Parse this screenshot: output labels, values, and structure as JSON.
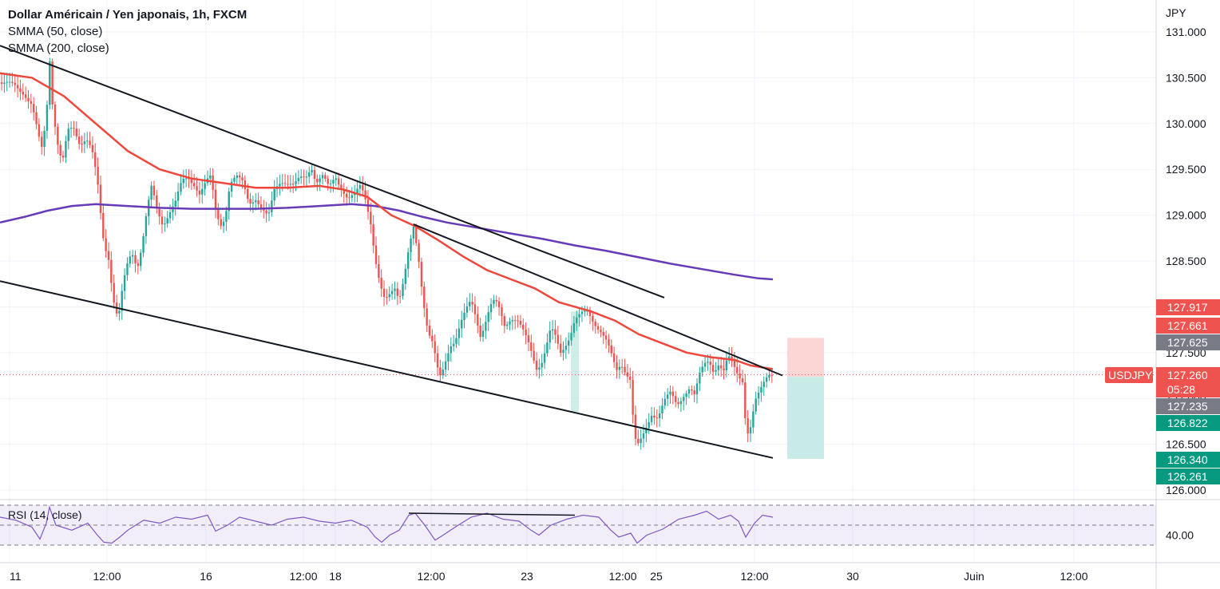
{
  "legend": {
    "title": "Dollar Américain / Yen japonais, 1h, FXCM",
    "ind1": "SMMA (50, close)",
    "ind2": "SMMA (200, close)"
  },
  "rsi_label": "RSI (14, close)",
  "currency": "JPY",
  "colors": {
    "up": "#26a69a",
    "down": "#ef5350",
    "smma50": "#f0473c",
    "smma200": "#673ab7",
    "rsi": "#7e57c2",
    "trend": "#131722",
    "stop_zone": "#fcd6d5",
    "target_zone": "#c8ebe7",
    "grid": "#f0f3fa"
  },
  "chart_data": {
    "type": "candlestick",
    "symbol": "USDJPY",
    "timeframe": "1h",
    "ylim": [
      125.9,
      131.2
    ],
    "price_ticks": [
      "131.000",
      "130.500",
      "130.000",
      "129.500",
      "129.000",
      "128.500",
      "128.000",
      "127.500",
      "127.000",
      "126.500",
      "126.000"
    ],
    "x_ticks": [
      "11",
      "12:00",
      "16",
      "12:00",
      "18",
      "12:00",
      "23",
      "12:00",
      "25",
      "12:00",
      "30",
      "Juin",
      "12:00"
    ],
    "price_tags": [
      {
        "label": "127.917",
        "color": "#ef5350"
      },
      {
        "label": "127.661",
        "color": "#ef5350"
      },
      {
        "label": "127.625",
        "color": "#787b86"
      },
      {
        "label": "127.260",
        "sub": "05:28",
        "symbol": "USDJPY",
        "color": "#ef5350"
      },
      {
        "label": "127.235",
        "color": "#787b86"
      },
      {
        "label": "126.822",
        "color": "#089981"
      },
      {
        "label": "126.340",
        "color": "#089981"
      },
      {
        "label": "126.261",
        "color": "#089981"
      }
    ],
    "last_price": 127.26,
    "position": {
      "entry": 127.235,
      "stop": 127.661,
      "target": 126.34
    },
    "rsi_levels": [
      70,
      50,
      30
    ],
    "rsi_tick": "40.00",
    "close_path": [
      [
        0,
        130.45
      ],
      [
        10,
        130.42
      ],
      [
        20,
        130.4
      ],
      [
        30,
        130.35
      ],
      [
        40,
        130.2
      ],
      [
        48,
        129.85
      ],
      [
        52,
        129.7
      ],
      [
        58,
        130.05
      ],
      [
        62,
        130.75
      ],
      [
        66,
        130.2
      ],
      [
        72,
        129.8
      ],
      [
        78,
        129.55
      ],
      [
        85,
        129.9
      ],
      [
        92,
        129.95
      ],
      [
        100,
        129.8
      ],
      [
        108,
        129.85
      ],
      [
        115,
        129.7
      ],
      [
        122,
        129.35
      ],
      [
        126,
        129.0
      ],
      [
        130,
        128.7
      ],
      [
        136,
        128.55
      ],
      [
        142,
        128.1
      ],
      [
        148,
        127.85
      ],
      [
        152,
        128.1
      ],
      [
        158,
        128.4
      ],
      [
        165,
        128.6
      ],
      [
        172,
        128.45
      ],
      [
        178,
        128.7
      ],
      [
        184,
        129.05
      ],
      [
        190,
        129.3
      ],
      [
        196,
        129.05
      ],
      [
        204,
        128.9
      ],
      [
        212,
        129.05
      ],
      [
        220,
        129.15
      ],
      [
        228,
        129.35
      ],
      [
        236,
        129.4
      ],
      [
        244,
        129.35
      ],
      [
        250,
        129.25
      ],
      [
        258,
        129.35
      ],
      [
        264,
        129.4
      ],
      [
        270,
        129.05
      ],
      [
        276,
        128.9
      ],
      [
        282,
        129.0
      ],
      [
        288,
        129.35
      ],
      [
        296,
        129.4
      ],
      [
        304,
        129.35
      ],
      [
        312,
        129.15
      ],
      [
        320,
        129.2
      ],
      [
        328,
        129.05
      ],
      [
        336,
        128.95
      ],
      [
        344,
        129.3
      ],
      [
        352,
        129.4
      ],
      [
        360,
        129.35
      ],
      [
        368,
        129.3
      ],
      [
        376,
        129.4
      ],
      [
        384,
        129.45
      ],
      [
        390,
        129.55
      ],
      [
        396,
        129.35
      ],
      [
        404,
        129.4
      ],
      [
        412,
        129.3
      ],
      [
        420,
        129.45
      ],
      [
        428,
        129.3
      ],
      [
        436,
        129.15
      ],
      [
        444,
        129.2
      ],
      [
        452,
        129.35
      ],
      [
        458,
        129.2
      ],
      [
        464,
        128.95
      ],
      [
        470,
        128.5
      ],
      [
        476,
        128.2
      ],
      [
        482,
        128.05
      ],
      [
        488,
        128.15
      ],
      [
        494,
        128.25
      ],
      [
        500,
        128.1
      ],
      [
        506,
        128.3
      ],
      [
        512,
        128.6
      ],
      [
        518,
        128.85
      ],
      [
        524,
        128.55
      ],
      [
        530,
        128.1
      ],
      [
        536,
        127.75
      ],
      [
        542,
        127.6
      ],
      [
        548,
        127.3
      ],
      [
        552,
        127.2
      ],
      [
        558,
        127.4
      ],
      [
        564,
        127.6
      ],
      [
        570,
        127.65
      ],
      [
        576,
        127.8
      ],
      [
        584,
        127.95
      ],
      [
        590,
        128.05
      ],
      [
        596,
        127.9
      ],
      [
        602,
        127.7
      ],
      [
        608,
        127.85
      ],
      [
        614,
        128.0
      ],
      [
        620,
        128.05
      ],
      [
        626,
        127.95
      ],
      [
        632,
        127.8
      ],
      [
        640,
        127.9
      ],
      [
        648,
        127.85
      ],
      [
        656,
        127.7
      ],
      [
        664,
        127.55
      ],
      [
        672,
        127.35
      ],
      [
        678,
        127.4
      ],
      [
        684,
        127.55
      ],
      [
        690,
        127.75
      ],
      [
        696,
        127.65
      ],
      [
        702,
        127.5
      ],
      [
        708,
        127.6
      ],
      [
        714,
        127.7
      ],
      [
        720,
        127.85
      ],
      [
        728,
        127.9
      ],
      [
        736,
        127.95
      ],
      [
        744,
        127.85
      ],
      [
        752,
        127.75
      ],
      [
        760,
        127.6
      ],
      [
        766,
        127.45
      ],
      [
        772,
        127.3
      ],
      [
        778,
        127.4
      ],
      [
        784,
        127.3
      ],
      [
        790,
        127.2
      ],
      [
        794,
        126.6
      ],
      [
        798,
        126.45
      ],
      [
        804,
        126.55
      ],
      [
        810,
        126.7
      ],
      [
        816,
        126.85
      ],
      [
        824,
        126.8
      ],
      [
        832,
        126.95
      ],
      [
        840,
        127.05
      ],
      [
        848,
        126.95
      ],
      [
        856,
        127.05
      ],
      [
        864,
        127.1
      ],
      [
        870,
        127.0
      ],
      [
        876,
        127.25
      ],
      [
        882,
        127.4
      ],
      [
        888,
        127.45
      ],
      [
        894,
        127.3
      ],
      [
        900,
        127.35
      ],
      [
        906,
        127.25
      ],
      [
        912,
        127.45
      ],
      [
        918,
        127.4
      ],
      [
        924,
        127.3
      ],
      [
        930,
        127.2
      ],
      [
        934,
        126.7
      ],
      [
        938,
        126.55
      ],
      [
        942,
        126.75
      ],
      [
        946,
        126.95
      ],
      [
        950,
        127.05
      ],
      [
        956,
        127.2
      ],
      [
        962,
        127.3
      ],
      [
        968,
        127.26
      ]
    ],
    "smma50": [
      [
        0,
        130.55
      ],
      [
        40,
        130.5
      ],
      [
        80,
        130.3
      ],
      [
        120,
        130.0
      ],
      [
        160,
        129.7
      ],
      [
        200,
        129.5
      ],
      [
        240,
        129.4
      ],
      [
        280,
        129.35
      ],
      [
        320,
        129.3
      ],
      [
        360,
        129.3
      ],
      [
        400,
        129.32
      ],
      [
        430,
        129.28
      ],
      [
        460,
        129.2
      ],
      [
        490,
        129.0
      ],
      [
        520,
        128.88
      ],
      [
        550,
        128.72
      ],
      [
        580,
        128.55
      ],
      [
        610,
        128.4
      ],
      [
        640,
        128.3
      ],
      [
        670,
        128.2
      ],
      [
        700,
        128.05
      ],
      [
        740,
        127.95
      ],
      [
        770,
        127.85
      ],
      [
        800,
        127.7
      ],
      [
        830,
        127.6
      ],
      [
        860,
        127.5
      ],
      [
        890,
        127.45
      ],
      [
        920,
        127.42
      ],
      [
        940,
        127.36
      ],
      [
        968,
        127.32
      ]
    ],
    "smma200": [
      [
        0,
        128.92
      ],
      [
        30,
        128.98
      ],
      [
        60,
        129.05
      ],
      [
        90,
        129.1
      ],
      [
        120,
        129.12
      ],
      [
        160,
        129.1
      ],
      [
        200,
        129.08
      ],
      [
        240,
        129.07
      ],
      [
        280,
        129.07
      ],
      [
        320,
        129.07
      ],
      [
        360,
        129.08
      ],
      [
        400,
        129.1
      ],
      [
        440,
        129.12
      ],
      [
        470,
        129.1
      ],
      [
        500,
        129.05
      ],
      [
        530,
        128.98
      ],
      [
        560,
        128.92
      ],
      [
        600,
        128.86
      ],
      [
        640,
        128.8
      ],
      [
        680,
        128.74
      ],
      [
        720,
        128.67
      ],
      [
        760,
        128.61
      ],
      [
        800,
        128.54
      ],
      [
        840,
        128.47
      ],
      [
        880,
        128.41
      ],
      [
        920,
        128.35
      ],
      [
        950,
        128.31
      ],
      [
        968,
        128.3
      ]
    ],
    "rsi_path": [
      [
        0,
        58
      ],
      [
        20,
        55
      ],
      [
        40,
        48
      ],
      [
        50,
        36
      ],
      [
        58,
        52
      ],
      [
        62,
        68
      ],
      [
        70,
        50
      ],
      [
        90,
        45
      ],
      [
        110,
        52
      ],
      [
        122,
        40
      ],
      [
        130,
        33
      ],
      [
        140,
        32
      ],
      [
        150,
        38
      ],
      [
        160,
        45
      ],
      [
        180,
        55
      ],
      [
        200,
        52
      ],
      [
        220,
        58
      ],
      [
        240,
        56
      ],
      [
        260,
        60
      ],
      [
        270,
        44
      ],
      [
        285,
        50
      ],
      [
        300,
        58
      ],
      [
        320,
        54
      ],
      [
        340,
        50
      ],
      [
        360,
        56
      ],
      [
        380,
        58
      ],
      [
        400,
        54
      ],
      [
        420,
        52
      ],
      [
        440,
        55
      ],
      [
        460,
        48
      ],
      [
        470,
        38
      ],
      [
        478,
        33
      ],
      [
        488,
        40
      ],
      [
        500,
        45
      ],
      [
        512,
        60
      ],
      [
        520,
        62
      ],
      [
        532,
        50
      ],
      [
        545,
        35
      ],
      [
        555,
        40
      ],
      [
        570,
        48
      ],
      [
        590,
        58
      ],
      [
        610,
        62
      ],
      [
        630,
        56
      ],
      [
        650,
        54
      ],
      [
        665,
        45
      ],
      [
        675,
        40
      ],
      [
        690,
        50
      ],
      [
        710,
        56
      ],
      [
        730,
        60
      ],
      [
        750,
        58
      ],
      [
        765,
        45
      ],
      [
        775,
        38
      ],
      [
        790,
        42
      ],
      [
        798,
        32
      ],
      [
        810,
        40
      ],
      [
        830,
        46
      ],
      [
        850,
        56
      ],
      [
        870,
        60
      ],
      [
        885,
        64
      ],
      [
        900,
        56
      ],
      [
        915,
        60
      ],
      [
        925,
        54
      ],
      [
        934,
        38
      ],
      [
        945,
        52
      ],
      [
        955,
        60
      ],
      [
        968,
        58
      ]
    ],
    "trend_lines": [
      {
        "x1": 0,
        "y1": 130.85,
        "x2": 832,
        "y2": 128.1
      },
      {
        "x1": 0,
        "y1": 128.28,
        "x2": 968,
        "y2": 126.35
      },
      {
        "x1": 518,
        "y1": 128.9,
        "x2": 980,
        "y2": 127.25
      }
    ],
    "rsi_line": {
      "x1": 512,
      "y1": 62,
      "x2": 720,
      "y2": 60
    }
  }
}
